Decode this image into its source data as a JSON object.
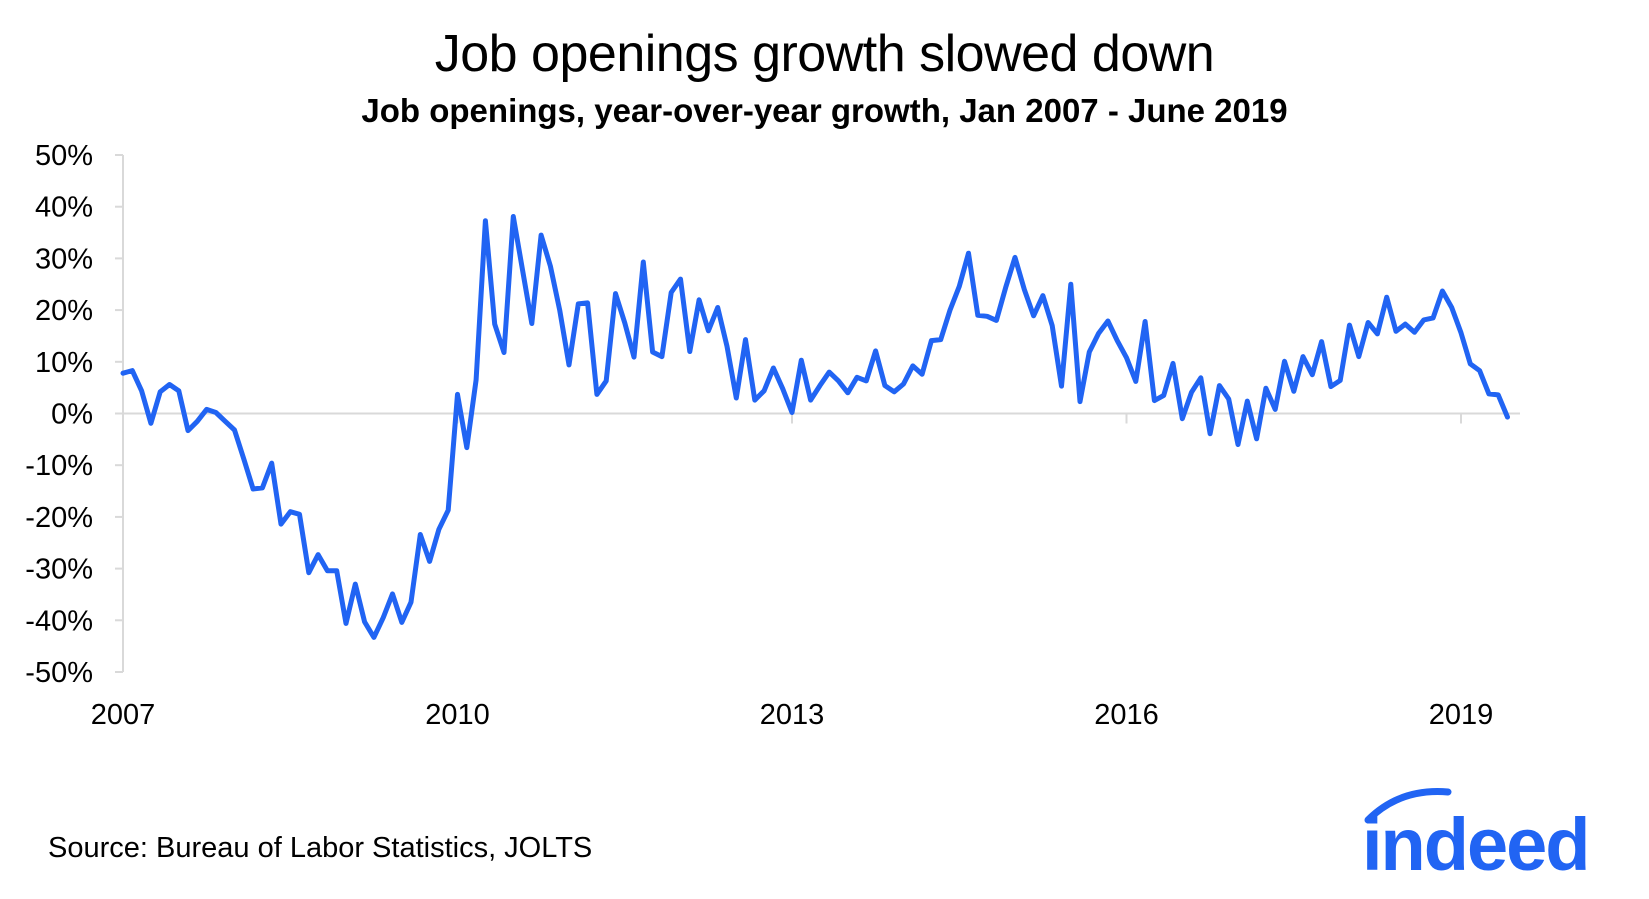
{
  "chart_data": {
    "type": "line",
    "title": "Job openings growth slowed down",
    "subtitle": "Job openings, year-over-year growth, Jan 2007 - June 2019",
    "xlabel": "",
    "ylabel": "",
    "ylim": [
      -50,
      50
    ],
    "yticks": [
      50,
      40,
      30,
      20,
      10,
      0,
      -10,
      -20,
      -30,
      -40,
      -50
    ],
    "ytick_labels": [
      "50%",
      "40%",
      "30%",
      "20%",
      "10%",
      "0%",
      "-10%",
      "-20%",
      "-30%",
      "-40%",
      "-50%"
    ],
    "xticks": [
      2007,
      2010,
      2013,
      2016,
      2019
    ],
    "xtick_labels": [
      "2007",
      "2010",
      "2013",
      "2016",
      "2019"
    ],
    "grid": false,
    "series": [
      {
        "name": "Job openings YoY growth",
        "color": "#2164f3",
        "start": "2007-01",
        "values": [
          7.8,
          8.3,
          4.4,
          -1.9,
          4.2,
          5.6,
          4.4,
          -3.3,
          -1.5,
          0.8,
          0.2,
          -1.5,
          -3.2,
          -8.8,
          -14.6,
          -14.4,
          -9.6,
          -21.4,
          -19.0,
          -19.5,
          -30.8,
          -27.3,
          -30.4,
          -30.4,
          -40.6,
          -33.0,
          -40.3,
          -43.3,
          -39.5,
          -34.9,
          -40.4,
          -36.5,
          -23.4,
          -28.6,
          -22.4,
          -18.7,
          3.7,
          -6.6,
          6.5,
          37.3,
          17.3,
          11.8,
          38.1,
          27.8,
          17.4,
          34.5,
          28.5,
          20.0,
          9.4,
          21.2,
          21.4,
          3.7,
          6.3,
          23.2,
          17.5,
          10.9,
          29.3,
          11.9,
          11.0,
          23.4,
          26.0,
          12.0,
          22.0,
          16.0,
          20.5,
          13.0,
          3.0,
          14.3,
          2.6,
          4.4,
          8.8,
          4.8,
          0.2,
          10.3,
          2.6,
          5.4,
          8.0,
          6.3,
          4.0,
          7.0,
          6.3,
          12.1,
          5.4,
          4.2,
          5.7,
          9.2,
          7.6,
          14.1,
          14.3,
          20.0,
          24.6,
          31.0,
          19.0,
          18.8,
          18.0,
          24.4,
          30.2,
          24.0,
          18.9,
          22.8,
          17.0,
          5.3,
          25.0,
          2.3,
          11.9,
          15.5,
          17.9,
          14.1,
          10.8,
          6.2,
          17.8,
          2.5,
          3.5,
          9.7,
          -1.0,
          4.1,
          6.9,
          -3.9,
          5.4,
          2.8,
          -6.0,
          2.4,
          -4.9,
          4.9,
          0.8,
          10.1,
          4.3,
          11.0,
          7.5,
          13.9,
          5.2,
          6.4,
          17.1,
          11.0,
          17.6,
          15.4,
          22.5,
          15.9,
          17.3,
          15.7,
          18.1,
          18.5,
          23.7,
          20.5,
          15.6,
          9.6,
          8.3,
          3.8,
          3.6,
          -0.7
        ]
      }
    ]
  },
  "footer": {
    "source": "Source: Bureau of Labor Statistics, JOLTS",
    "logo_text": "indeed",
    "logo_color": "#2164f3"
  }
}
